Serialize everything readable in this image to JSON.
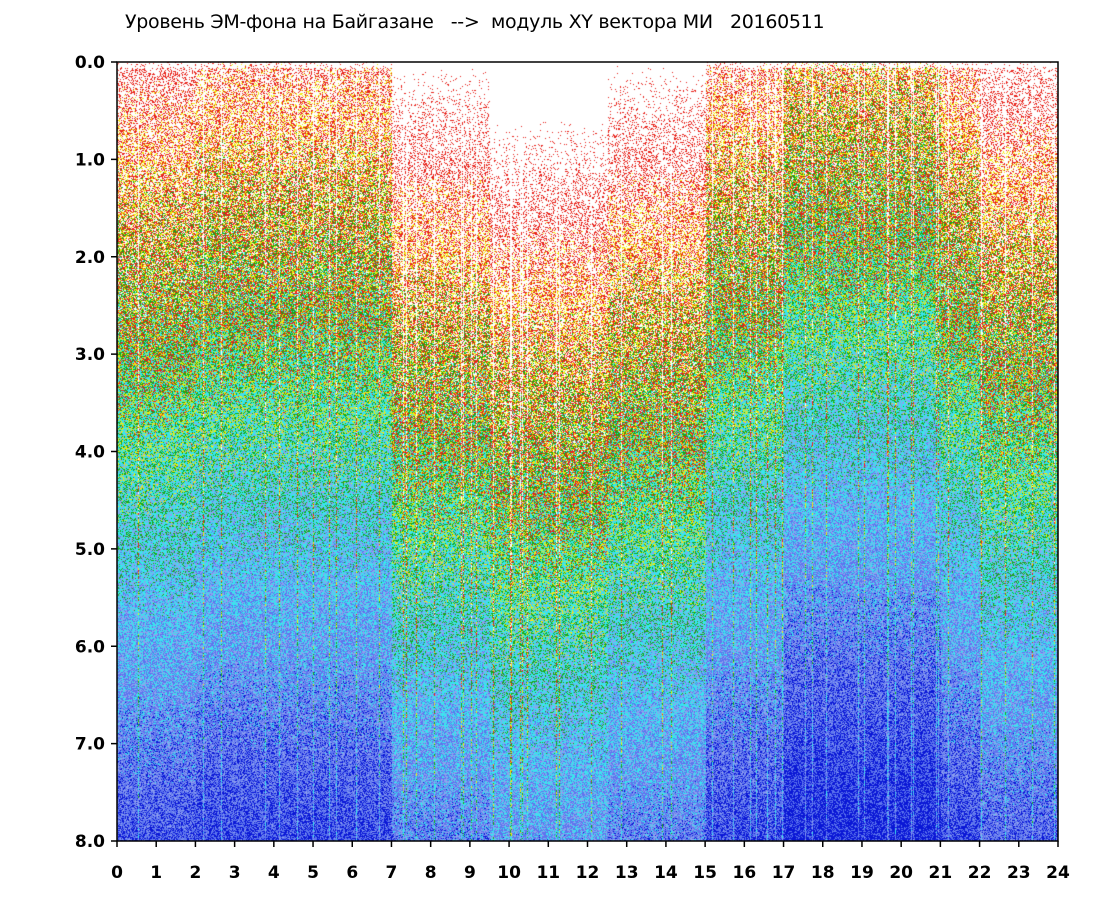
{
  "chart_data": {
    "type": "heatmap",
    "title": "Уровень ЭМ-фона на Байгазане   -->  модуль XY вектора МИ   20160511",
    "xlabel": "",
    "ylabel": "",
    "xlim": [
      0,
      24
    ],
    "ylim": [
      0.0,
      8.0
    ],
    "y_axis_inverted": true,
    "x_ticks": [
      "0",
      "1",
      "2",
      "3",
      "4",
      "5",
      "6",
      "7",
      "8",
      "9",
      "10",
      "11",
      "12",
      "13",
      "14",
      "15",
      "16",
      "17",
      "18",
      "19",
      "20",
      "21",
      "22",
      "23",
      "24"
    ],
    "y_ticks": [
      "0.0",
      "1.0",
      "2.0",
      "3.0",
      "4.0",
      "5.0",
      "6.0",
      "7.0",
      "8.0"
    ],
    "color_scale": [
      "#0a17d6",
      "#5d75ee",
      "#8ea0ef",
      "#38e6ee",
      "#17a817",
      "#f2ea10",
      "#e8221a",
      "#ffffff"
    ],
    "background_color": "#ffffff",
    "grid": false,
    "legend": "none"
  }
}
